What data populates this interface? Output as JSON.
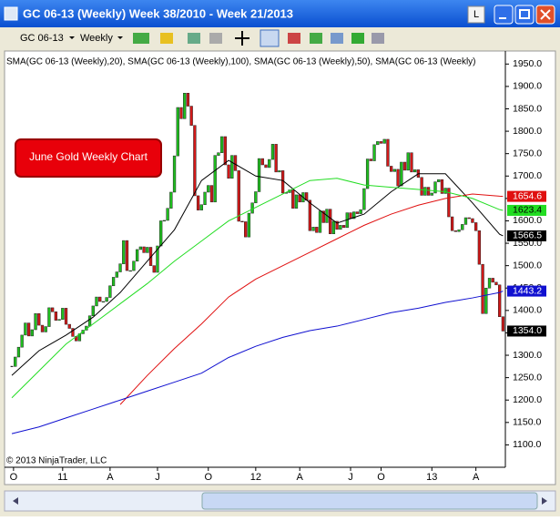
{
  "window": {
    "title": "GC 06-13 (Weekly)  Week 38/2010 - Week 21/2013",
    "instrument": "GC 06-13",
    "interval": "Weekly",
    "button": "L"
  },
  "chart_data": {
    "type": "candlestick",
    "annotation": "June Gold Weekly Chart",
    "copyright": "© 2013 NinjaTrader, LLC",
    "indicator_label": "SMA(GC 06-13 (Weekly),20), SMA(GC 06-13 (Weekly),100), SMA(GC 06-13 (Weekly),50), SMA(GC 06-13 (Weekly)",
    "up_color": "#1fbf1f",
    "down_color": "#d01818",
    "close": [
      1275,
      1296,
      1318,
      1345,
      1372,
      1343,
      1357,
      1393,
      1367,
      1352,
      1364,
      1406,
      1397,
      1378,
      1380,
      1405,
      1369,
      1360,
      1342,
      1332,
      1348,
      1356,
      1365,
      1388,
      1410,
      1430,
      1420,
      1420,
      1429,
      1455,
      1474,
      1486,
      1504,
      1556,
      1489,
      1489,
      1510,
      1536,
      1542,
      1529,
      1541,
      1500,
      1485,
      1544,
      1600,
      1601,
      1628,
      1664,
      1745,
      1853,
      1828,
      1885,
      1856,
      1813,
      1656,
      1624,
      1636,
      1664,
      1679,
      1642,
      1746,
      1752,
      1788,
      1725,
      1695,
      1746,
      1712,
      1599,
      1598,
      1564,
      1617,
      1640,
      1665,
      1739,
      1725,
      1719,
      1737,
      1771,
      1709,
      1712,
      1662,
      1663,
      1669,
      1628,
      1658,
      1642,
      1663,
      1646,
      1578,
      1586,
      1574,
      1622,
      1596,
      1626,
      1571,
      1599,
      1581,
      1590,
      1585,
      1618,
      1605,
      1620,
      1616,
      1625,
      1672,
      1738,
      1734,
      1770,
      1777,
      1773,
      1782,
      1722,
      1710,
      1715,
      1678,
      1731,
      1713,
      1752,
      1709,
      1714,
      1697,
      1657,
      1675,
      1657,
      1662,
      1687,
      1692,
      1661,
      1673,
      1609,
      1578,
      1576,
      1580,
      1592,
      1607,
      1605,
      1596,
      1578,
      1503,
      1393,
      1450,
      1472,
      1463,
      1457,
      1386,
      1354
    ],
    "close_last_label": "1354.0",
    "sma_x": [
      0,
      8,
      16,
      24,
      32,
      40,
      48,
      56,
      64,
      72,
      80,
      88,
      96,
      104,
      112,
      120,
      128,
      136,
      144,
      145
    ],
    "series": [
      {
        "color": "#000000",
        "values": [
          1255,
          1310,
          1345,
          1385,
          1440,
          1510,
          1580,
          1690,
          1735,
          1700,
          1690,
          1640,
          1595,
          1615,
          1665,
          1705,
          1705,
          1640,
          1570,
          1566.5
        ]
      },
      {
        "color": "#e01010",
        "values": [
          null,
          null,
          null,
          null,
          1190,
          1255,
          1315,
          1370,
          1430,
          1470,
          1500,
          1530,
          1560,
          1590,
          1615,
          1635,
          1650,
          1660,
          1655,
          1654.6
        ]
      },
      {
        "color": "#22dd22",
        "values": [
          1205,
          1265,
          1325,
          1370,
          1415,
          1460,
          1510,
          1555,
          1600,
          1630,
          1660,
          1690,
          1695,
          1680,
          1675,
          1670,
          1665,
          1650,
          1625,
          1623.4
        ]
      },
      {
        "color": "#1010d0",
        "values": [
          1125,
          1140,
          1160,
          1180,
          1200,
          1220,
          1240,
          1260,
          1295,
          1320,
          1340,
          1355,
          1365,
          1380,
          1395,
          1405,
          1418,
          1428,
          1440,
          1443.2
        ]
      }
    ],
    "ylim": [
      1050,
      1975
    ],
    "yticks": [
      {
        "value": 1100,
        "label": "1100.0"
      },
      {
        "value": 1150,
        "label": "1150.0"
      },
      {
        "value": 1200,
        "label": "1200.0"
      },
      {
        "value": 1250,
        "label": "1250.0"
      },
      {
        "value": 1300,
        "label": "1300.0"
      },
      {
        "value": 1350,
        "label": "1350.0"
      },
      {
        "value": 1400,
        "label": "1400.0"
      },
      {
        "value": 1450,
        "label": "1450.0"
      },
      {
        "value": 1500,
        "label": "1500.0"
      },
      {
        "value": 1550,
        "label": "1550.0"
      },
      {
        "value": 1600,
        "label": "1600.0"
      },
      {
        "value": 1650,
        "label": "1650.0"
      },
      {
        "value": 1700,
        "label": "1700.0"
      },
      {
        "value": 1750,
        "label": "1750.0"
      },
      {
        "value": 1800,
        "label": "1800.0"
      },
      {
        "value": 1850,
        "label": "1850.0"
      },
      {
        "value": 1900,
        "label": "1900.0"
      },
      {
        "value": 1950,
        "label": "1950.0"
      }
    ],
    "xticks": [
      {
        "value": 0.5,
        "label": "O"
      },
      {
        "value": 15,
        "label": "11"
      },
      {
        "value": 29,
        "label": "A"
      },
      {
        "value": 43,
        "label": "J"
      },
      {
        "value": 58,
        "label": "O"
      },
      {
        "value": 72,
        "label": "12"
      },
      {
        "value": 85,
        "label": "A"
      },
      {
        "value": 100,
        "label": "J"
      },
      {
        "value": 109,
        "label": "O"
      },
      {
        "value": 124,
        "label": "13"
      },
      {
        "value": 137,
        "label": "A"
      }
    ]
  }
}
